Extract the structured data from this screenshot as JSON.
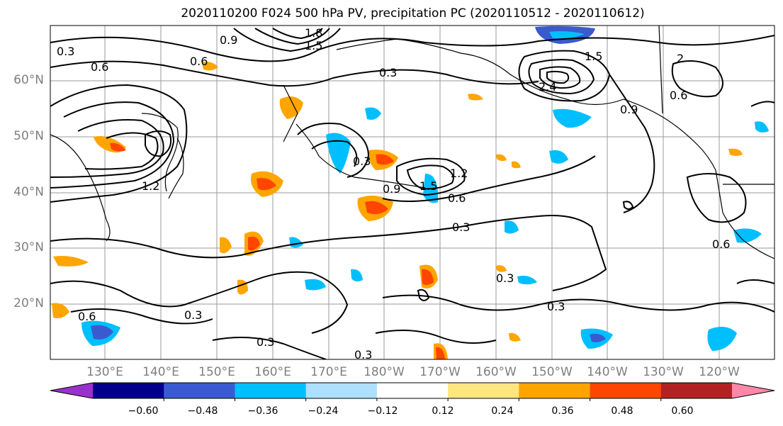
{
  "title": "2020110200 F024 500 hPa PV, precipitation PC (2020110512 - 2020110612)",
  "lat_labels": [
    "60°N",
    "50°N",
    "40°N",
    "30°N",
    "20°N"
  ],
  "lon_labels": [
    "130°E",
    "140°E",
    "150°E",
    "160°E",
    "170°E",
    "180°W",
    "170°W",
    "160°W",
    "150°W",
    "140°W",
    "130°W",
    "120°W"
  ],
  "contour_labels": [
    "0.3",
    "0.6",
    "0.9",
    "1.2",
    "1.5",
    "1.8",
    "2",
    "0.6",
    "0.3",
    "0.9",
    "1.2",
    "1.5",
    "0.6",
    "0.3",
    "0.3",
    "0.3",
    "0.3",
    "0.3",
    "0.6",
    "0.6",
    "0.3",
    "1.5",
    "0.9",
    "0.6",
    "0.3",
    "2.4"
  ],
  "colorbar": {
    "colors": [
      "#9932CC",
      "#00008B",
      "#3A5BCF",
      "#00BFFF",
      "#ADDFFF",
      "#FFFFFF",
      "#FFE680",
      "#FFA500",
      "#FF4500",
      "#B22222",
      "#FF88AA"
    ],
    "tick_labels": [
      "−0.60",
      "−0.48",
      "−0.36",
      "−0.24",
      "−0.12",
      "0.12",
      "0.24",
      "0.36",
      "0.48",
      "0.60"
    ]
  }
}
